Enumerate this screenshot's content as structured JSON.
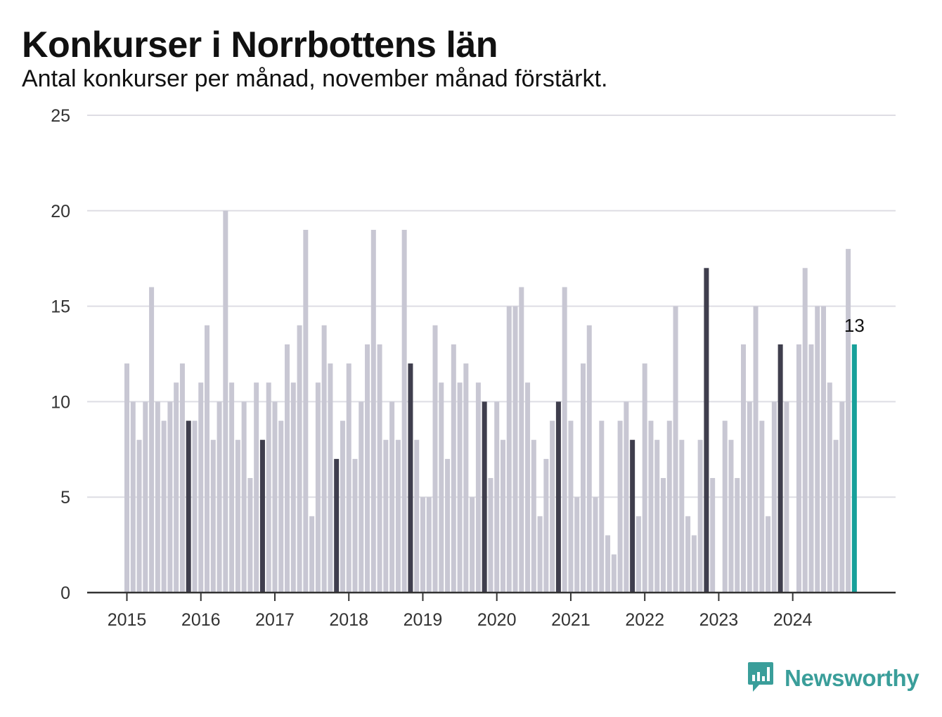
{
  "title": "Konkurser i Norrbottens län",
  "subtitle": "Antal konkurser per månad, november månad förstärkt.",
  "brand": {
    "name": "Newsworthy",
    "icon": "newsworthy-logo-icon"
  },
  "colors": {
    "bar": "#c8c7d3",
    "highlight": "#3f3e4d",
    "latest": "#17a09a",
    "grid": "#dedde4",
    "axis": "#333333",
    "brand": "#3a9e9a"
  },
  "chart_data": {
    "type": "bar",
    "start": "2015-01",
    "x_tick_labels": [
      "2015",
      "2016",
      "2017",
      "2018",
      "2019",
      "2020",
      "2021",
      "2022",
      "2023",
      "2024"
    ],
    "values": [
      12,
      10,
      8,
      10,
      16,
      10,
      9,
      10,
      11,
      12,
      9,
      9,
      11,
      14,
      8,
      10,
      20,
      11,
      8,
      10,
      6,
      11,
      8,
      11,
      10,
      9,
      13,
      11,
      14,
      19,
      4,
      11,
      14,
      12,
      7,
      9,
      12,
      7,
      10,
      13,
      19,
      13,
      8,
      10,
      8,
      19,
      12,
      8,
      5,
      5,
      14,
      11,
      7,
      13,
      11,
      12,
      5,
      11,
      10,
      6,
      10,
      8,
      15,
      15,
      16,
      11,
      8,
      4,
      7,
      9,
      10,
      16,
      9,
      5,
      12,
      14,
      5,
      9,
      3,
      2,
      9,
      10,
      8,
      4,
      12,
      9,
      8,
      6,
      9,
      15,
      8,
      4,
      3,
      8,
      17,
      6,
      0,
      9,
      8,
      6,
      13,
      10,
      15,
      9,
      4,
      10,
      13,
      10,
      0,
      13,
      17,
      13,
      15,
      15,
      11,
      8,
      10,
      18,
      13
    ],
    "highlight_rule": "november",
    "latest_label": "13",
    "yticks": [
      "0",
      "5",
      "10",
      "15",
      "20",
      "25"
    ],
    "ylim": [
      0,
      25
    ],
    "xlabel": "",
    "ylabel": "",
    "grid": true
  }
}
